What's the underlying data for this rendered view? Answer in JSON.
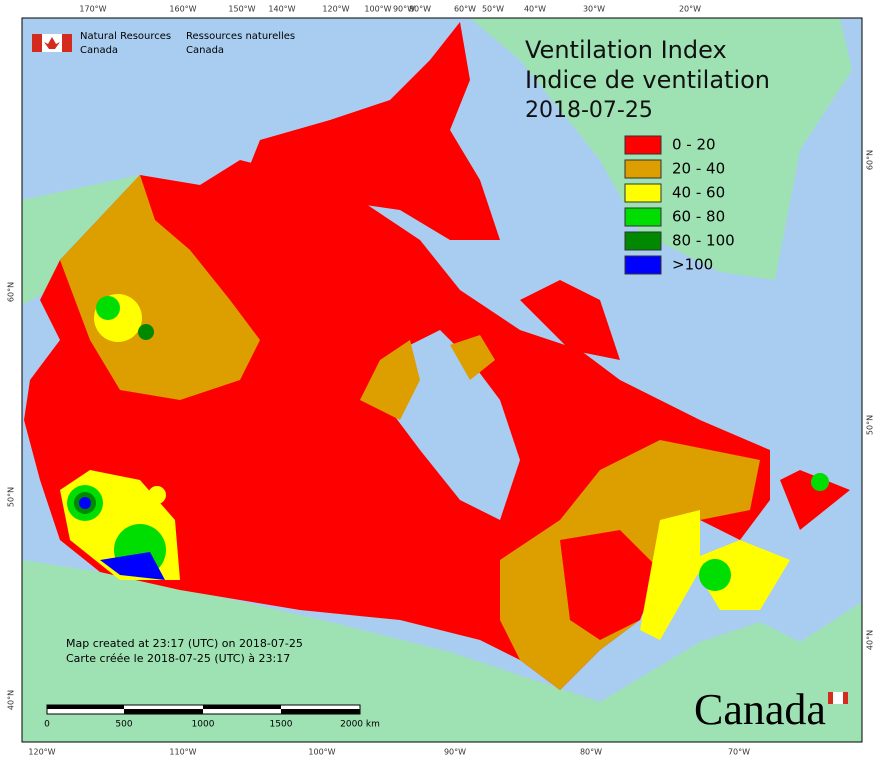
{
  "agency": {
    "en": [
      "Natural Resources",
      "Canada"
    ],
    "fr": [
      "Ressources naturelles",
      "Canada"
    ]
  },
  "title": [
    "Ventilation Index",
    "Indice de ventilation",
    "2018-07-25"
  ],
  "legend": [
    {
      "label": "0 - 20",
      "color": "#ff0000"
    },
    {
      "label": "20 - 40",
      "color": "#dd9e00"
    },
    {
      "label": "40 - 60",
      "color": "#ffff00"
    },
    {
      "label": "60 - 80",
      "color": "#00dd00"
    },
    {
      "label": "80 - 100",
      "color": "#008800"
    },
    {
      "label": ">100",
      "color": "#0000ff"
    }
  ],
  "credits": [
    "Map created at 23:17 (UTC) on 2018-07-25",
    "Carte créée le 2018-07-25 (UTC) à 23:17"
  ],
  "scale_bar": [
    "0",
    "500",
    "1000",
    "1500",
    "2000  km"
  ],
  "graticule": {
    "top": [
      "170°W",
      "160°W",
      "150°W",
      "140°W",
      "120°W",
      "100°W",
      "90°W",
      "80°W",
      "60°W",
      "50°W",
      "40°W",
      "30°W",
      "20°W"
    ],
    "bottom": [
      "120°W",
      "110°W",
      "100°W",
      "90°W",
      "80°W",
      "70°W"
    ],
    "left": [
      "60°N",
      "50°N",
      "40°N"
    ],
    "right": [
      "60°N",
      "50°N",
      "40°N"
    ]
  },
  "wordmark": "Canada"
}
